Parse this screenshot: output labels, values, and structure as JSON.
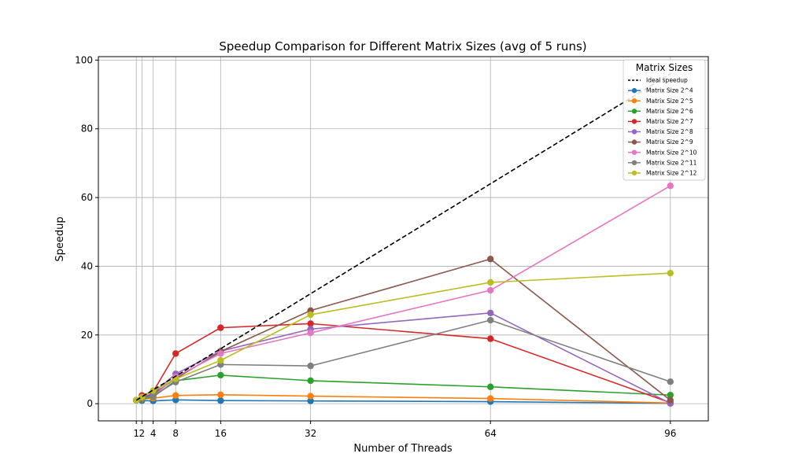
{
  "chart_data": {
    "type": "line",
    "title": "Speedup Comparison for Different Matrix Sizes (avg of 5 runs)",
    "xlabel": "Number of Threads",
    "ylabel": "Speedup",
    "x": [
      1,
      2,
      4,
      8,
      16,
      32,
      64,
      96
    ],
    "x_ticks": [
      1,
      2,
      4,
      8,
      16,
      32,
      64,
      96
    ],
    "x_tick_labels": [
      "1",
      "2",
      "4",
      "8",
      "16",
      "32",
      "64",
      "96"
    ],
    "xlim": [
      -5.75,
      102.75
    ],
    "ylim": [
      -5,
      101
    ],
    "y_ticks": [
      0,
      20,
      40,
      60,
      80,
      100
    ],
    "grid": true,
    "legend": {
      "title": "Matrix Sizes",
      "placement": "top-right"
    },
    "ideal": {
      "name": "Ideal speedup",
      "color": "#000000",
      "style": "dashed",
      "values": [
        1,
        2,
        4,
        8,
        16,
        32,
        64,
        96
      ]
    },
    "series": [
      {
        "name": "Matrix Size 2^4",
        "color": "#1f77b4",
        "values": [
          1.0,
          0.9,
          0.8,
          1.1,
          0.9,
          0.8,
          0.6,
          0.1
        ]
      },
      {
        "name": "Matrix Size 2^5",
        "color": "#ff7f0e",
        "values": [
          1.0,
          1.3,
          1.6,
          2.4,
          2.6,
          2.2,
          1.5,
          0.2
        ]
      },
      {
        "name": "Matrix Size 2^6",
        "color": "#2ca02c",
        "values": [
          1.0,
          1.4,
          2.0,
          6.7,
          8.3,
          6.7,
          4.9,
          2.5
        ]
      },
      {
        "name": "Matrix Size 2^7",
        "color": "#d62728",
        "values": [
          1.0,
          2.4,
          3.5,
          14.6,
          22.1,
          23.3,
          18.9,
          0.3
        ]
      },
      {
        "name": "Matrix Size 2^8",
        "color": "#9467bd",
        "values": [
          1.0,
          1.8,
          3.0,
          8.7,
          15.3,
          21.7,
          26.4,
          0.1
        ]
      },
      {
        "name": "Matrix Size 2^9",
        "color": "#8c564b",
        "values": [
          1.0,
          1.5,
          2.8,
          7.3,
          15.2,
          27.1,
          42.1,
          1.0
        ]
      },
      {
        "name": "Matrix Size 2^10",
        "color": "#e377c2",
        "values": [
          1.0,
          1.6,
          2.2,
          7.8,
          14.6,
          20.6,
          33.0,
          63.4
        ]
      },
      {
        "name": "Matrix Size 2^11",
        "color": "#7f7f7f",
        "values": [
          1.0,
          1.5,
          2.3,
          6.3,
          11.4,
          11.0,
          24.3,
          6.4
        ]
      },
      {
        "name": "Matrix Size 2^12",
        "color": "#bcbd22",
        "values": [
          1.0,
          1.9,
          3.8,
          7.2,
          12.6,
          25.9,
          35.3,
          38.0
        ]
      }
    ]
  }
}
